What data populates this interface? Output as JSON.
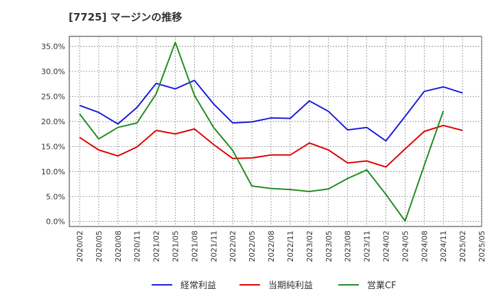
{
  "chart_data": {
    "type": "line",
    "title": "[7725]  マージンの推移",
    "x": [
      "2020/02",
      "2020/05",
      "2020/08",
      "2020/11",
      "2021/02",
      "2021/05",
      "2021/08",
      "2021/11",
      "2022/02",
      "2022/05",
      "2022/08",
      "2022/11",
      "2023/02",
      "2023/05",
      "2023/08",
      "2023/11",
      "2024/02",
      "2024/05",
      "2024/08",
      "2024/11",
      "2025/02",
      "2025/05"
    ],
    "ylim": [
      -0.01,
      0.37
    ],
    "yticks": [
      0.0,
      0.05,
      0.1,
      0.15,
      0.2,
      0.25,
      0.3,
      0.35
    ],
    "ytick_labels": [
      "0.0%",
      "5.0%",
      "10.0%",
      "15.0%",
      "20.0%",
      "25.0%",
      "30.0%",
      "35.0%"
    ],
    "grid": true,
    "legend_position": "bottom",
    "series": [
      {
        "name": "経常利益",
        "color": "#1a1adc",
        "values": [
          0.232,
          0.218,
          0.195,
          0.228,
          0.276,
          0.265,
          0.282,
          0.235,
          0.197,
          0.199,
          0.207,
          0.206,
          0.241,
          0.22,
          0.183,
          0.188,
          0.161,
          0.21,
          0.26,
          0.269,
          0.257,
          null
        ]
      },
      {
        "name": "当期純利益",
        "color": "#e00000",
        "values": [
          0.168,
          0.143,
          0.131,
          0.149,
          0.182,
          0.175,
          0.185,
          0.154,
          0.126,
          0.127,
          0.133,
          0.133,
          0.157,
          0.143,
          0.117,
          0.121,
          0.109,
          0.145,
          0.18,
          0.192,
          0.182,
          null
        ]
      },
      {
        "name": "営業CF",
        "color": "#228b22",
        "values": [
          0.215,
          0.165,
          0.188,
          0.197,
          0.255,
          0.358,
          0.252,
          0.188,
          0.142,
          0.071,
          0.066,
          0.064,
          0.06,
          0.065,
          0.086,
          0.103,
          0.054,
          0.001,
          0.112,
          0.221,
          null,
          null
        ]
      }
    ]
  }
}
